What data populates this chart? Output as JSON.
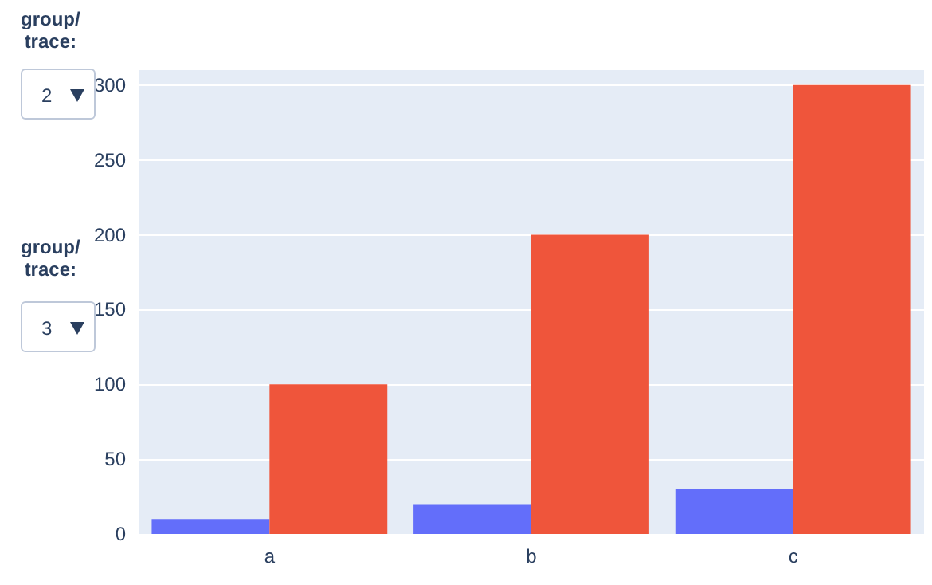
{
  "chart_data": {
    "type": "bar",
    "categories": [
      "a",
      "b",
      "c"
    ],
    "series": [
      {
        "color": "#636efa",
        "values": [
          10,
          20,
          30
        ]
      },
      {
        "color": "#ef553b",
        "values": [
          100,
          200,
          300
        ]
      }
    ],
    "ylim": [
      0,
      310
    ],
    "yticks": [
      0,
      50,
      100,
      150,
      200,
      250,
      300
    ],
    "grid": "y",
    "annotations": [
      "group/\ntrace:",
      "2",
      "group/\ntrace:",
      "3"
    ]
  }
}
